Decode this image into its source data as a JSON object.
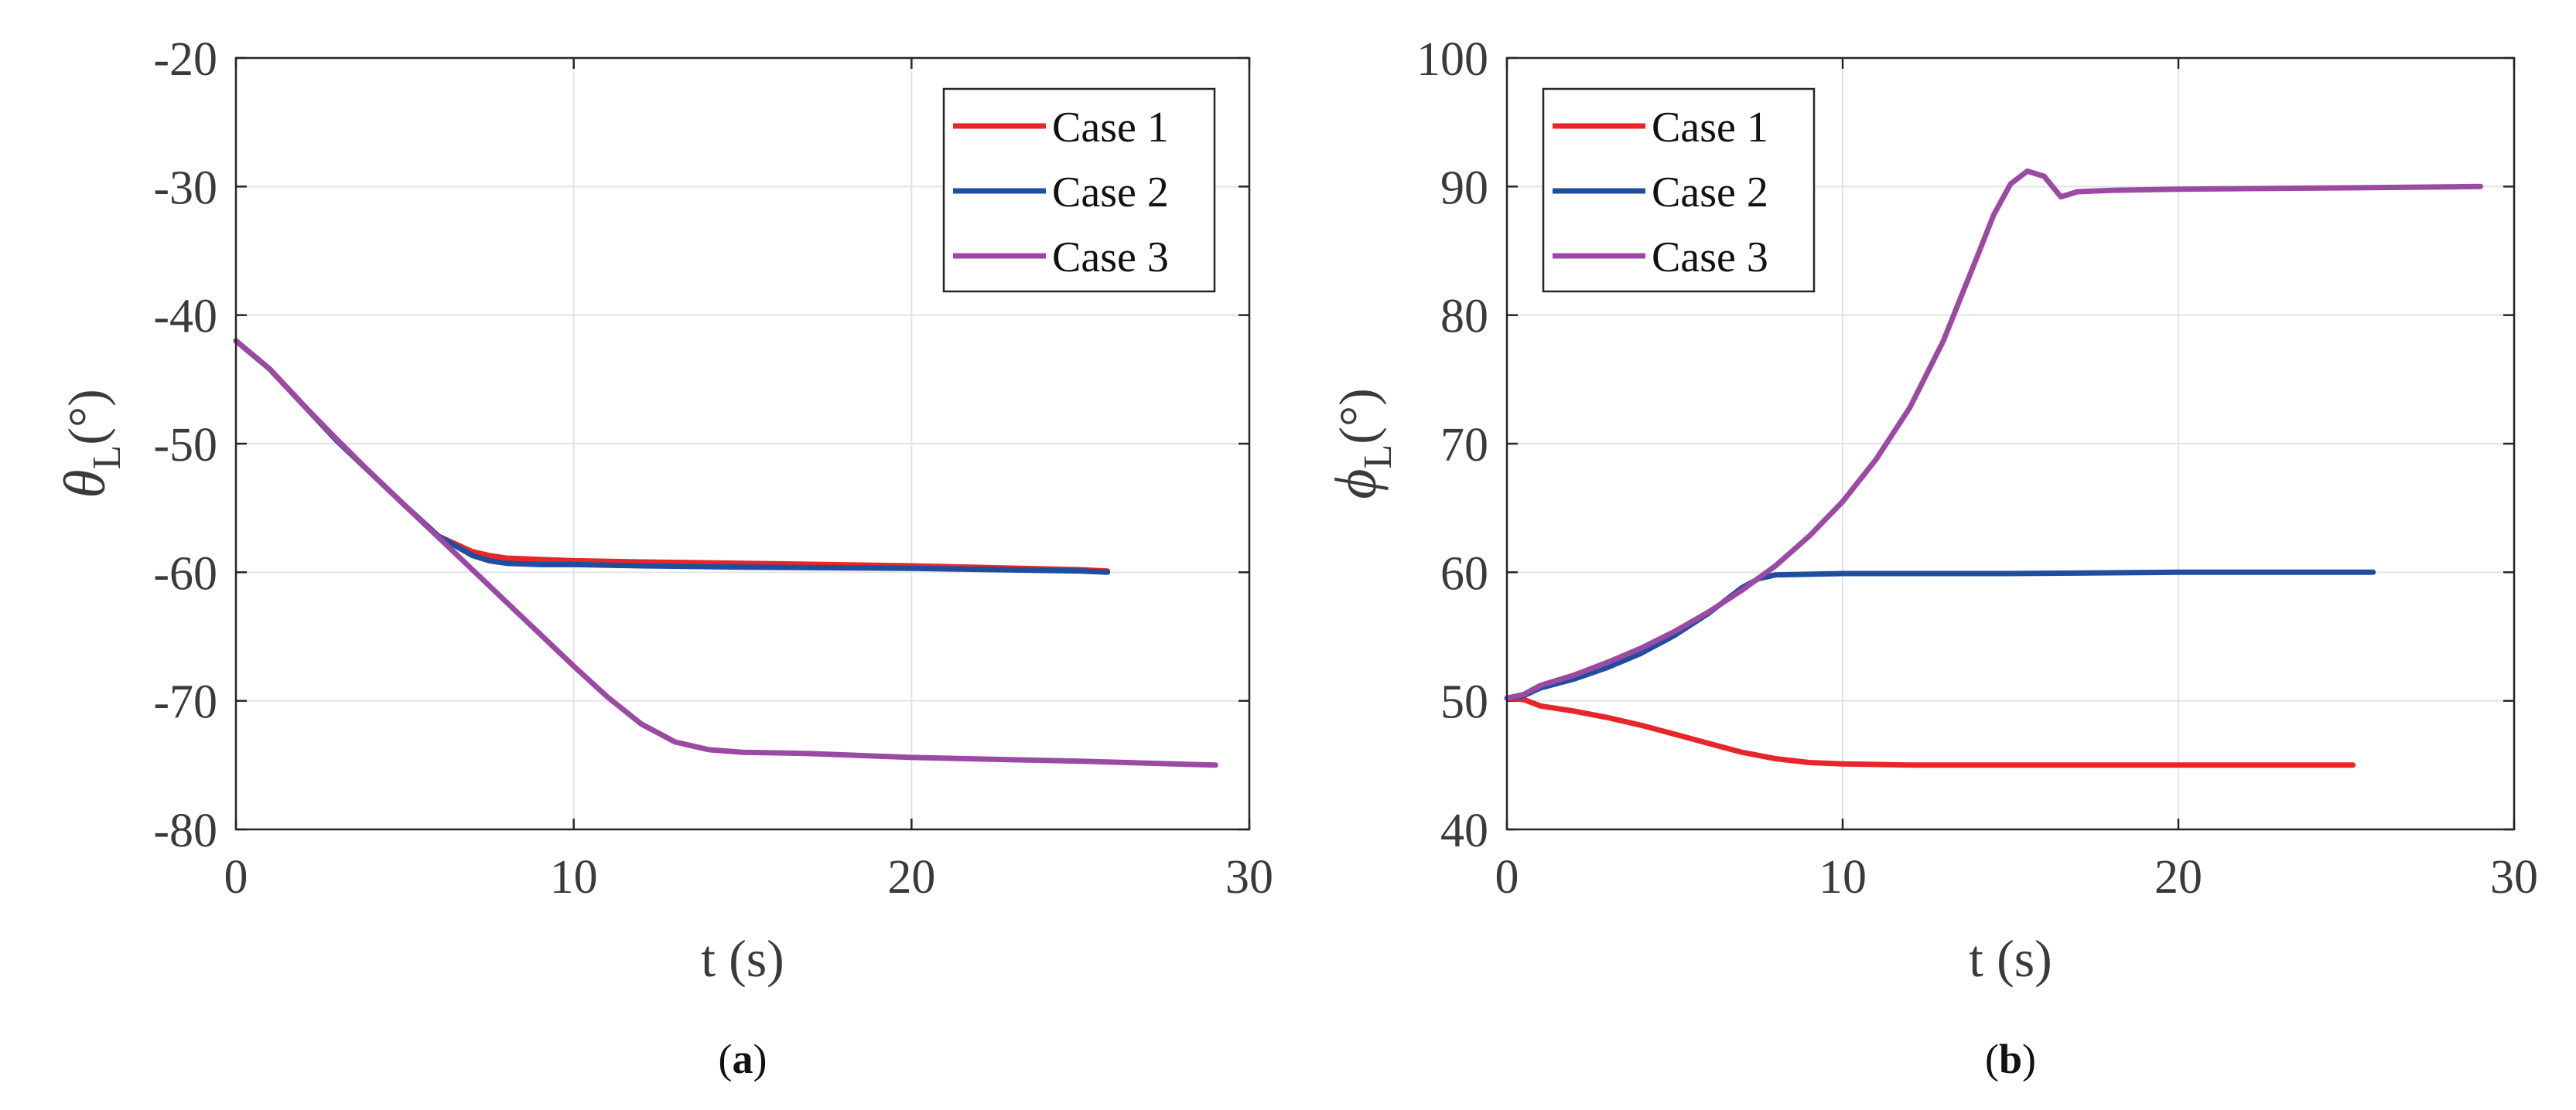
{
  "chart_data": [
    {
      "type": "line",
      "caption_letter": "a",
      "ylabel_symbol": "θ",
      "ylabel_sub": "L",
      "ylabel_unit": "(°)",
      "xlabel": "t (s)",
      "xlim": [
        0,
        30
      ],
      "ylim": [
        -80,
        -20
      ],
      "xticks": [
        "0",
        "10",
        "20",
        "30"
      ],
      "yticks": [
        "-20",
        "-30",
        "-40",
        "-50",
        "-60",
        "-70",
        "-80"
      ],
      "grid": true,
      "legend_position": "top-right",
      "series": [
        {
          "name": "Case 1",
          "color": "#e8262a",
          "x": [
            0,
            1,
            2,
            3,
            4,
            5,
            6,
            7,
            7.5,
            8,
            9,
            10,
            12,
            15,
            20,
            25,
            25.8
          ],
          "y": [
            -42,
            -44.2,
            -47,
            -49.8,
            -52.3,
            -54.8,
            -57.2,
            -58.4,
            -58.7,
            -58.9,
            -59,
            -59.1,
            -59.2,
            -59.3,
            -59.5,
            -59.8,
            -59.9
          ]
        },
        {
          "name": "Case 2",
          "color": "#1f4e9e",
          "x": [
            0,
            1,
            2,
            3,
            4,
            5,
            6,
            7,
            7.5,
            8,
            9,
            10,
            12,
            15,
            20,
            25,
            25.8
          ],
          "y": [
            -42,
            -44.2,
            -47,
            -49.8,
            -52.3,
            -54.8,
            -57.2,
            -58.7,
            -59.1,
            -59.3,
            -59.4,
            -59.4,
            -59.5,
            -59.6,
            -59.7,
            -59.9,
            -60
          ]
        },
        {
          "name": "Case 3",
          "color": "#9b4aa3",
          "x": [
            0,
            1,
            2,
            3,
            4,
            5,
            6,
            7,
            8,
            9,
            10,
            11,
            12,
            13,
            14,
            15,
            17,
            20,
            25,
            29
          ],
          "y": [
            -42,
            -44.2,
            -47,
            -49.7,
            -52.3,
            -54.8,
            -57.3,
            -59.8,
            -62.3,
            -64.8,
            -67.3,
            -69.7,
            -71.8,
            -73.2,
            -73.8,
            -74,
            -74.1,
            -74.4,
            -74.7,
            -75
          ]
        }
      ],
      "caption": "(a)"
    },
    {
      "type": "line",
      "caption_letter": "b",
      "ylabel_symbol": "ϕ",
      "ylabel_sub": "L",
      "ylabel_unit": "(°)",
      "xlabel": "t (s)",
      "xlim": [
        0,
        30
      ],
      "ylim": [
        40,
        100
      ],
      "xticks": [
        "0",
        "10",
        "20",
        "30"
      ],
      "yticks": [
        "100",
        "90",
        "80",
        "70",
        "60",
        "50",
        "40"
      ],
      "grid": true,
      "legend_position": "top-left",
      "series": [
        {
          "name": "Case 1",
          "color": "#e8262a",
          "x": [
            0,
            0.5,
            1,
            2,
            3,
            4,
            5,
            6,
            7,
            8,
            9,
            10,
            12,
            15,
            20,
            25.2
          ],
          "y": [
            50.2,
            50.1,
            49.6,
            49.2,
            48.7,
            48.1,
            47.4,
            46.7,
            46,
            45.5,
            45.2,
            45.1,
            45,
            45,
            45,
            45
          ]
        },
        {
          "name": "Case 2",
          "color": "#1f4e9e",
          "x": [
            0,
            0.5,
            1,
            2,
            3,
            4,
            5,
            6,
            7,
            7.5,
            8,
            10,
            15,
            20,
            25.8
          ],
          "y": [
            50.2,
            50.4,
            51,
            51.7,
            52.6,
            53.7,
            55.1,
            56.8,
            58.8,
            59.5,
            59.8,
            59.9,
            59.9,
            60,
            60
          ]
        },
        {
          "name": "Case 3",
          "color": "#9b4aa3",
          "x": [
            0,
            0.5,
            1,
            2,
            3,
            4,
            5,
            6,
            7,
            8,
            9,
            10,
            11,
            12,
            13,
            14,
            14.5,
            15,
            15.5,
            16,
            16.5,
            17,
            18,
            20,
            25,
            29
          ],
          "y": [
            50.2,
            50.5,
            51.2,
            52,
            53,
            54.1,
            55.4,
            56.9,
            58.6,
            60.5,
            62.8,
            65.5,
            68.8,
            72.8,
            78,
            84.5,
            87.8,
            90.2,
            91.2,
            90.8,
            89.2,
            89.6,
            89.7,
            89.8,
            89.9,
            90
          ]
        }
      ],
      "caption": "(b)"
    }
  ]
}
